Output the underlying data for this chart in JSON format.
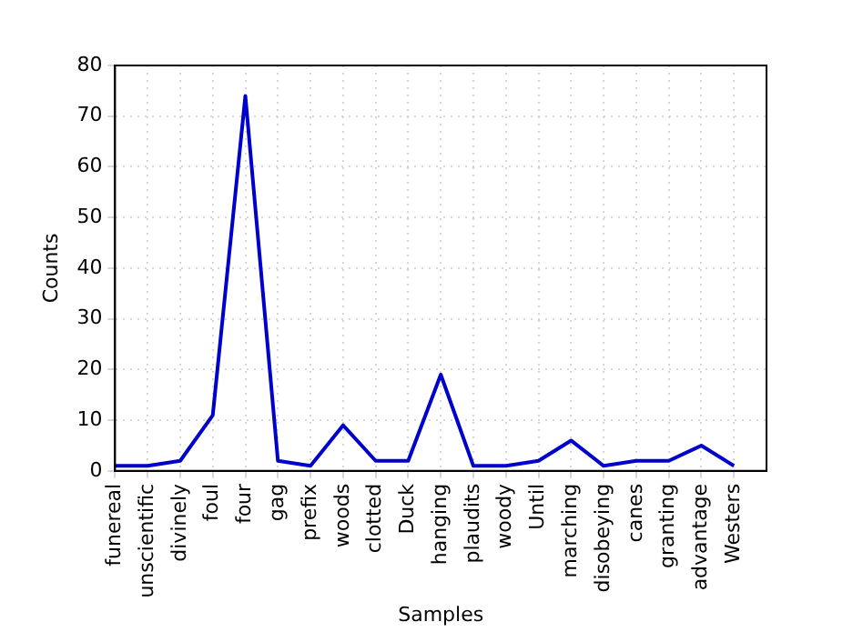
{
  "chart_data": {
    "type": "line",
    "xlabel": "Samples",
    "ylabel": "Counts",
    "categories": [
      "funereal",
      "unscientific",
      "divinely",
      "foul",
      "four",
      "gag",
      "prefix",
      "woods",
      "clotted",
      "Duck",
      "hanging",
      "plaudits",
      "woody",
      "Until",
      "marching",
      "disobeying",
      "canes",
      "granting",
      "advantage",
      "Westers"
    ],
    "series": [
      {
        "color": "#0000cc",
        "values": [
          1,
          1,
          2,
          11,
          74,
          2,
          1,
          9,
          2,
          2,
          19,
          1,
          1,
          2,
          6,
          1,
          2,
          2,
          5,
          1
        ]
      }
    ],
    "ylim": [
      0,
      80
    ],
    "yticks": [
      0,
      10,
      20,
      30,
      40,
      50,
      60,
      70,
      80
    ],
    "grid": true,
    "legend": false,
    "marker": "none",
    "line_style": "solid"
  }
}
